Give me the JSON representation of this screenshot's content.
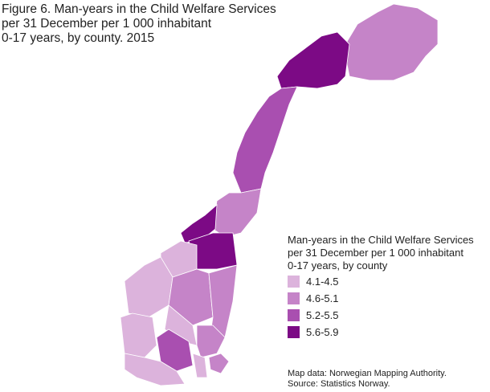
{
  "title": [
    "Figure 6. Man-years in the Child Welfare Services",
    "per 31 December per 1 000 inhabitant",
    "0-17 years, by county. 2015"
  ],
  "legend": {
    "title": [
      "Man-years in the Child Welfare Services",
      "per 31 December per 1 000 inhabitant",
      "0-17 years, by county"
    ],
    "items": [
      {
        "label": "4.1-4.5",
        "color": "#dcb3dc"
      },
      {
        "label": "4.6-5.1",
        "color": "#c584c8"
      },
      {
        "label": "5.2-5.5",
        "color": "#a94fb0"
      },
      {
        "label": "5.6-5.9",
        "color": "#7c0a85"
      }
    ]
  },
  "source": [
    "Map data: Norwegian Mapping Authority.",
    "Source: Statistics Norway."
  ]
}
